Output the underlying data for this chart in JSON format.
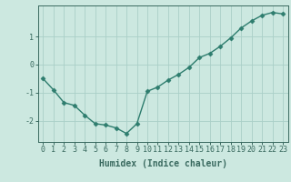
{
  "x": [
    0,
    1,
    2,
    3,
    4,
    5,
    6,
    7,
    8,
    9,
    10,
    11,
    12,
    13,
    14,
    15,
    16,
    17,
    18,
    19,
    20,
    21,
    22,
    23
  ],
  "y": [
    -0.5,
    -0.9,
    -1.35,
    -1.45,
    -1.8,
    -2.1,
    -2.15,
    -2.25,
    -2.45,
    -2.1,
    -0.95,
    -0.8,
    -0.55,
    -0.35,
    -0.1,
    0.25,
    0.4,
    0.65,
    0.95,
    1.3,
    1.55,
    1.75,
    1.85,
    1.8
  ],
  "line_color": "#2e7d6e",
  "marker": "D",
  "marker_size": 2.5,
  "bg_color": "#cce8e0",
  "grid_color": "#aacfc8",
  "xlabel": "Humidex (Indice chaleur)",
  "xlim": [
    -0.5,
    23.5
  ],
  "ylim": [
    -2.75,
    2.1
  ],
  "yticks": [
    -2,
    -1,
    0,
    1
  ],
  "xticks": [
    0,
    1,
    2,
    3,
    4,
    5,
    6,
    7,
    8,
    9,
    10,
    11,
    12,
    13,
    14,
    15,
    16,
    17,
    18,
    19,
    20,
    21,
    22,
    23
  ],
  "xlabel_fontsize": 7,
  "tick_fontsize": 6,
  "line_width": 1.0,
  "axis_color": "#3a6a60"
}
